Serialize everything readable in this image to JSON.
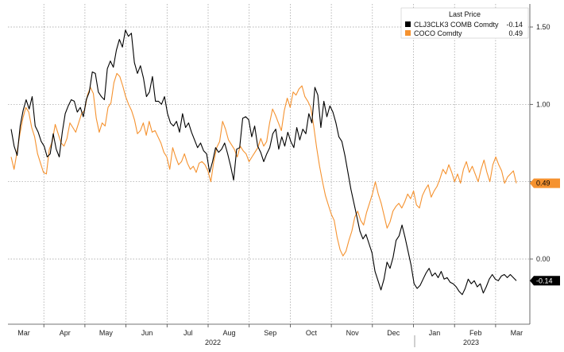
{
  "chart_data": {
    "type": "line",
    "title": "",
    "xlabel": "",
    "ylabel": "",
    "ylim": [
      -0.45,
      1.65
    ],
    "yticks": [
      "1.50",
      "1.00",
      "0.50",
      "0.00"
    ],
    "ytick_values": [
      1.5,
      1.0,
      0.5,
      0.0
    ],
    "xtick_labels": [
      "Mar",
      "Apr",
      "May",
      "Jun",
      "Jul",
      "Aug",
      "Sep",
      "Oct",
      "Nov",
      "Dec",
      "Jan",
      "Feb",
      "Mar"
    ],
    "year_labels": [
      "2022",
      "2023"
    ],
    "grid": true,
    "legend": {
      "title": "Last Price",
      "placement": "top-right",
      "entries": [
        {
          "label": "CLJ3CLK3 COMB Comdty",
          "value": "-0.14",
          "color": "#000000"
        },
        {
          "label": "COCO Comdty",
          "value": "0.49",
          "color": "#f5922f"
        }
      ]
    },
    "last_value_badges": [
      {
        "text": "0.49",
        "value": 0.49,
        "color": "#f5922f",
        "text_color": "#000000"
      },
      {
        "text": "-0.14",
        "value": -0.14,
        "color": "#000000",
        "text_color": "#ffffff"
      }
    ],
    "series": [
      {
        "name": "CLJ3CLK3 COMB Comdty",
        "color": "#000000",
        "values": [
          0.84,
          0.73,
          0.67,
          0.86,
          0.96,
          1.03,
          0.97,
          1.05,
          0.86,
          0.82,
          0.76,
          0.73,
          0.66,
          0.68,
          0.81,
          0.71,
          0.66,
          0.82,
          0.94,
          0.99,
          1.03,
          1.02,
          0.95,
          0.98,
          0.92,
          1.03,
          1.08,
          1.21,
          1.2,
          1.08,
          1.05,
          1.03,
          1.23,
          1.28,
          1.24,
          1.35,
          1.42,
          1.37,
          1.48,
          1.44,
          1.46,
          1.27,
          1.2,
          1.25,
          1.17,
          1.05,
          1.08,
          1.18,
          1.02,
          1.02,
          1.0,
          1.05,
          0.94,
          0.88,
          0.86,
          0.89,
          0.82,
          0.94,
          0.85,
          0.88,
          0.82,
          0.77,
          0.72,
          0.75,
          0.7,
          0.68,
          0.56,
          0.63,
          0.72,
          0.69,
          0.71,
          0.75,
          0.68,
          0.6,
          0.51,
          0.71,
          0.72,
          0.91,
          0.92,
          0.9,
          0.79,
          0.86,
          0.73,
          0.69,
          0.63,
          0.68,
          0.72,
          0.81,
          0.84,
          0.71,
          0.79,
          0.73,
          0.82,
          0.76,
          0.72,
          0.85,
          0.77,
          0.84,
          0.81,
          0.94,
          0.88,
          1.11,
          1.06,
          0.85,
          1.02,
          0.92,
          0.99,
          0.95,
          0.88,
          0.79,
          0.76,
          0.67,
          0.56,
          0.45,
          0.36,
          0.27,
          0.18,
          0.13,
          0.16,
          0.1,
          0.04,
          -0.08,
          -0.14,
          -0.2,
          -0.13,
          -0.02,
          -0.06,
          0.01,
          0.12,
          0.15,
          0.22,
          0.14,
          0.05,
          -0.04,
          -0.16,
          -0.19,
          -0.17,
          -0.13,
          -0.09,
          -0.06,
          -0.11,
          -0.09,
          -0.12,
          -0.08,
          -0.13,
          -0.12,
          -0.15,
          -0.16,
          -0.18,
          -0.21,
          -0.23,
          -0.19,
          -0.13,
          -0.16,
          -0.14,
          -0.18,
          -0.16,
          -0.22,
          -0.18,
          -0.13,
          -0.1,
          -0.13,
          -0.14,
          -0.11,
          -0.1,
          -0.12,
          -0.1,
          -0.12,
          -0.14
        ]
      },
      {
        "name": "COCO Comdty",
        "color": "#f5922f",
        "values": [
          0.66,
          0.58,
          0.69,
          0.81,
          0.91,
          0.98,
          0.95,
          0.85,
          0.79,
          0.68,
          0.62,
          0.56,
          0.55,
          0.71,
          0.76,
          0.87,
          0.81,
          0.75,
          0.73,
          0.78,
          0.88,
          0.85,
          0.82,
          0.88,
          0.94,
          0.96,
          1.06,
          1.11,
          1.07,
          0.91,
          0.82,
          0.88,
          0.86,
          0.98,
          1.01,
          1.14,
          1.2,
          1.18,
          1.12,
          1.05,
          1.0,
          0.96,
          0.9,
          0.81,
          0.83,
          0.88,
          0.8,
          0.89,
          0.82,
          0.83,
          0.79,
          0.75,
          0.69,
          0.66,
          0.58,
          0.72,
          0.66,
          0.61,
          0.63,
          0.68,
          0.62,
          0.58,
          0.6,
          0.56,
          0.62,
          0.63,
          0.61,
          0.57,
          0.5,
          0.63,
          0.72,
          0.76,
          0.89,
          0.84,
          0.77,
          0.74,
          0.71,
          0.66,
          0.73,
          0.7,
          0.68,
          0.63,
          0.66,
          0.69,
          0.72,
          0.78,
          0.73,
          0.76,
          0.88,
          0.97,
          0.93,
          0.88,
          0.83,
          0.96,
          1.04,
          0.98,
          1.08,
          1.06,
          1.1,
          1.12,
          1.05,
          1.02,
          0.98,
          0.86,
          0.72,
          0.6,
          0.5,
          0.41,
          0.35,
          0.29,
          0.25,
          0.14,
          0.06,
          0.02,
          0.05,
          0.12,
          0.18,
          0.27,
          0.31,
          0.25,
          0.22,
          0.3,
          0.36,
          0.42,
          0.5,
          0.42,
          0.36,
          0.28,
          0.2,
          0.24,
          0.31,
          0.34,
          0.36,
          0.33,
          0.37,
          0.42,
          0.39,
          0.44,
          0.35,
          0.33,
          0.41,
          0.45,
          0.48,
          0.4,
          0.44,
          0.47,
          0.52,
          0.58,
          0.55,
          0.61,
          0.56,
          0.5,
          0.55,
          0.49,
          0.58,
          0.63,
          0.56,
          0.6,
          0.55,
          0.5,
          0.58,
          0.64,
          0.56,
          0.5,
          0.61,
          0.66,
          0.61,
          0.57,
          0.49,
          0.53,
          0.55,
          0.57,
          0.49
        ]
      }
    ]
  }
}
